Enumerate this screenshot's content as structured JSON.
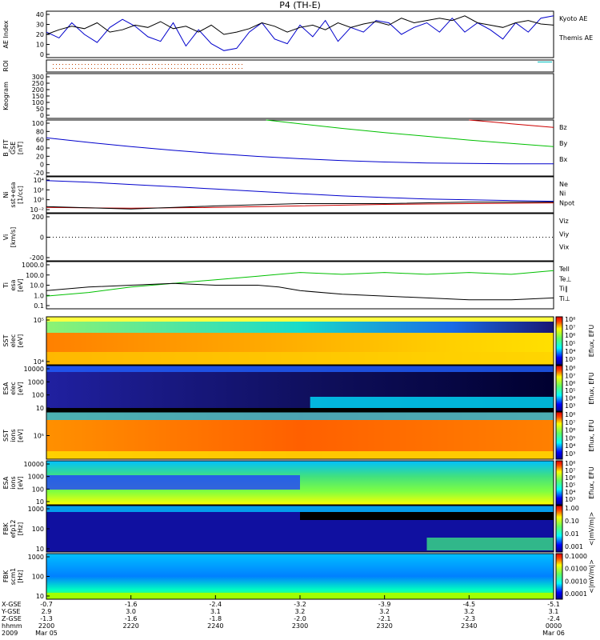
{
  "chart_data": {
    "type": "line",
    "title": "P4 (TH-E)",
    "time_ticks": [
      "2200",
      "2220",
      "2240",
      "2300",
      "2320",
      "2340",
      "0000"
    ],
    "time_range_hhmm": [
      "2200",
      "0000"
    ],
    "footer": {
      "row_labels": [
        "X-GSE",
        "Y-GSE",
        "Z-GSE",
        "hhmm",
        "2009"
      ],
      "X-GSE": [
        "-0.7",
        "-1.6",
        "-2.4",
        "-3.2",
        "-3.9",
        "-4.5",
        "-5.1"
      ],
      "Y-GSE": [
        "2.9",
        "3.0",
        "3.1",
        "3.2",
        "3.2",
        "3.2",
        "3.1"
      ],
      "Z-GSE": [
        "-1.3",
        "-1.6",
        "-1.8",
        "-2.0",
        "-2.1",
        "-2.3",
        "-2.4"
      ],
      "hhmm": [
        "2200",
        "2220",
        "2240",
        "2300",
        "2320",
        "2340",
        "0000"
      ],
      "dates": [
        "Mar 05",
        "Mar 06"
      ]
    },
    "panels": [
      {
        "id": "ae",
        "ylabel": "AE Index",
        "yticks": [
          "40",
          "30",
          "20",
          "10",
          "0"
        ],
        "ylim": [
          0,
          40
        ],
        "legend": [
          "Kyoto AE",
          "Themis AE"
        ],
        "series": [
          {
            "name": "Kyoto AE",
            "color": "#0000cc",
            "x": [
              0,
              3,
              6,
              9,
              12,
              15,
              18,
              21,
              24,
              27,
              30,
              33,
              36,
              39,
              42,
              45,
              48,
              51,
              54,
              57,
              60,
              63,
              66,
              69,
              72,
              75,
              78,
              81,
              84,
              87,
              90,
              93,
              96,
              99,
              102,
              105,
              108,
              111,
              114,
              117,
              120
            ],
            "values": [
              22,
              17,
              30,
              20,
              13,
              26,
              33,
              27,
              18,
              14,
              30,
              10,
              24,
              12,
              6,
              8,
              22,
              30,
              16,
              12,
              28,
              18,
              32,
              14,
              26,
              22,
              32,
              30,
              20,
              26,
              30,
              22,
              34,
              22,
              30,
              24,
              16,
              30,
              22,
              34,
              36
            ]
          },
          {
            "name": "Themis AE",
            "color": "#000000",
            "x": [
              0,
              3,
              6,
              9,
              12,
              15,
              18,
              21,
              24,
              27,
              30,
              33,
              36,
              39,
              42,
              45,
              48,
              51,
              54,
              57,
              60,
              63,
              66,
              69,
              72,
              75,
              78,
              81,
              84,
              87,
              90,
              93,
              96,
              99,
              102,
              105,
              108,
              111,
              114,
              117,
              120
            ],
            "values": [
              20,
              24,
              27,
              25,
              30,
              22,
              24,
              28,
              26,
              31,
              25,
              27,
              22,
              28,
              20,
              22,
              25,
              30,
              27,
              22,
              26,
              28,
              24,
              30,
              26,
              29,
              31,
              28,
              34,
              30,
              32,
              34,
              32,
              36,
              30,
              28,
              26,
              30,
              32,
              29,
              28
            ]
          }
        ]
      },
      {
        "id": "roi",
        "ylabel": "ROI"
      },
      {
        "id": "keogram",
        "ylabel": "Keogram",
        "yticks": [
          "300",
          "250",
          "200",
          "150",
          "100",
          "50",
          "0"
        ],
        "ylim": [
          0,
          300
        ]
      },
      {
        "id": "bfit",
        "ylabel": "B_FIT\nGSE\n[nT]",
        "yticks": [
          "100",
          "80",
          "60",
          "40",
          "20",
          "0",
          "-20"
        ],
        "ylim": [
          -20,
          100
        ],
        "legend": [
          "Bz",
          "By",
          "Bx"
        ],
        "series": [
          {
            "name": "Bx",
            "color": "#0000cc",
            "x": [
              0,
              10,
              20,
              30,
              40,
              50,
              60,
              70,
              80,
              90,
              100,
              110,
              120
            ],
            "values": [
              62,
              52,
              43,
              35,
              28,
              22,
              17,
              13,
              10,
              8,
              7,
              6,
              6
            ]
          },
          {
            "name": "By",
            "color": "#00c000",
            "x": [
              52,
              60,
              70,
              80,
              90,
              100,
              110,
              120
            ],
            "values": [
              100,
              92,
              82,
              73,
              65,
              57,
              50,
              43
            ]
          },
          {
            "name": "Bz",
            "color": "#cc0000",
            "x": [
              100,
              105,
              110,
              115,
              120
            ],
            "values": [
              100,
              96,
              92,
              88,
              84
            ]
          }
        ]
      },
      {
        "id": "ni",
        "ylabel": "Ni\nsst+esa\n[1/cc]",
        "yticks": [
          "10⁴",
          "10²",
          "10⁰",
          "10⁻²"
        ],
        "ylog": true,
        "legend": [
          "Ne",
          "Ni",
          "Npot"
        ],
        "series": [
          {
            "name": "Ni",
            "color": "#0000cc",
            "x": [
              0,
              10,
              20,
              30,
              40,
              50,
              60,
              70,
              80,
              90,
              100,
              110,
              120
            ],
            "values": [
              2.0,
              1.8,
              1.5,
              1.2,
              0.9,
              0.6,
              0.3,
              0.0,
              -0.2,
              -0.4,
              -0.5,
              -0.6,
              -0.7
            ]
          },
          {
            "name": "Ne",
            "color": "#cc0000",
            "x": [
              0,
              20,
              40,
              60,
              80,
              100,
              120
            ],
            "values": [
              -1.5,
              -1.6,
              -1.5,
              -1.3,
              -1.1,
              -1.0,
              -0.9
            ]
          },
          {
            "name": "Npot",
            "color": "#000000",
            "x": [
              0,
              20,
              40,
              60,
              80,
              100,
              120
            ],
            "values": [
              -1.4,
              -1.7,
              -1.3,
              -1.0,
              -1.0,
              -0.8,
              -0.8
            ]
          }
        ]
      },
      {
        "id": "vi",
        "ylabel": "Vi\n[km/s]",
        "yticks": [
          "200",
          "0",
          "-200"
        ],
        "ylim": [
          -300,
          300
        ],
        "legend": [
          "Viz",
          "Viy",
          "Vix"
        ]
      },
      {
        "id": "ti",
        "ylabel": "Ti\nesa\n[eV]",
        "yticks": [
          "1000.0",
          "100.0",
          "10.0",
          "1.0",
          "0.1"
        ],
        "ylog": true,
        "legend": [
          "Tell",
          "Te⊥",
          "Ti∥",
          "Ti⊥"
        ],
        "series": [
          {
            "name": "Ti∥",
            "color": "#00c000",
            "x": [
              0,
              10,
              20,
              30,
              40,
              50,
              55,
              60,
              70,
              80,
              90,
              100,
              110,
              120
            ],
            "values": [
              2.0,
              2.2,
              2.5,
              2.7,
              2.9,
              3.1,
              3.2,
              3.3,
              3.2,
              3.3,
              3.2,
              3.3,
              3.2,
              3.4
            ]
          },
          {
            "name": "Tell",
            "color": "#000000",
            "x": [
              0,
              10,
              20,
              30,
              40,
              50,
              55,
              60,
              70,
              80,
              90,
              100,
              110,
              120
            ],
            "values": [
              2.3,
              2.5,
              2.6,
              2.7,
              2.6,
              2.6,
              2.5,
              2.3,
              2.1,
              2.0,
              1.9,
              1.8,
              1.8,
              1.9
            ]
          }
        ]
      },
      {
        "id": "sst_e",
        "ylabel": "SST\nelec\n[eV]",
        "yticks": [
          "10⁵",
          "10⁴"
        ],
        "cbar_label": "Eflux, EFU",
        "cbar_ticks": [
          "10⁸",
          "10⁷",
          "10⁶",
          "10⁵",
          "10⁴",
          "10³"
        ]
      },
      {
        "id": "esa_e",
        "ylabel": "ESA\nelec\n[eV]",
        "yticks": [
          "10000",
          "1000",
          "100",
          "10"
        ],
        "cbar_label": "Eflux, EFU",
        "cbar_ticks": [
          "10⁸",
          "10⁷",
          "10⁶",
          "10⁵",
          "10⁴",
          "10³"
        ]
      },
      {
        "id": "sst_i",
        "ylabel": "SST\nions\n[eV]",
        "yticks": [
          "10⁵"
        ],
        "cbar_label": "Eflux, EFU",
        "cbar_ticks": [
          "10⁸",
          "10⁷",
          "10⁶",
          "10⁵",
          "10⁴",
          "10³"
        ]
      },
      {
        "id": "esa_i",
        "ylabel": "ESA\nions\n[eV]",
        "yticks": [
          "10000",
          "1000",
          "100",
          "10"
        ],
        "cbar_label": "Eflux, EFU",
        "cbar_ticks": [
          "10⁸",
          "10⁷",
          "10⁶",
          "10⁵",
          "10⁴",
          "10³"
        ]
      },
      {
        "id": "fbk_e12",
        "ylabel": "FBK\nefp12\n[Hz]",
        "yticks": [
          "1000",
          "100",
          "10"
        ],
        "cbar_label": "<|mV/m|>",
        "cbar_ticks": [
          "1.00",
          "0.10",
          "0.01",
          "0.001"
        ]
      },
      {
        "id": "fbk_scm",
        "ylabel": "FBK\nscm1\n[Hz]",
        "yticks": [
          "1000",
          "100",
          "10"
        ],
        "cbar_label": "<|mV/m|>",
        "cbar_ticks": [
          "0.1000",
          "0.0100",
          "0.0010",
          "0.0001"
        ]
      }
    ]
  }
}
